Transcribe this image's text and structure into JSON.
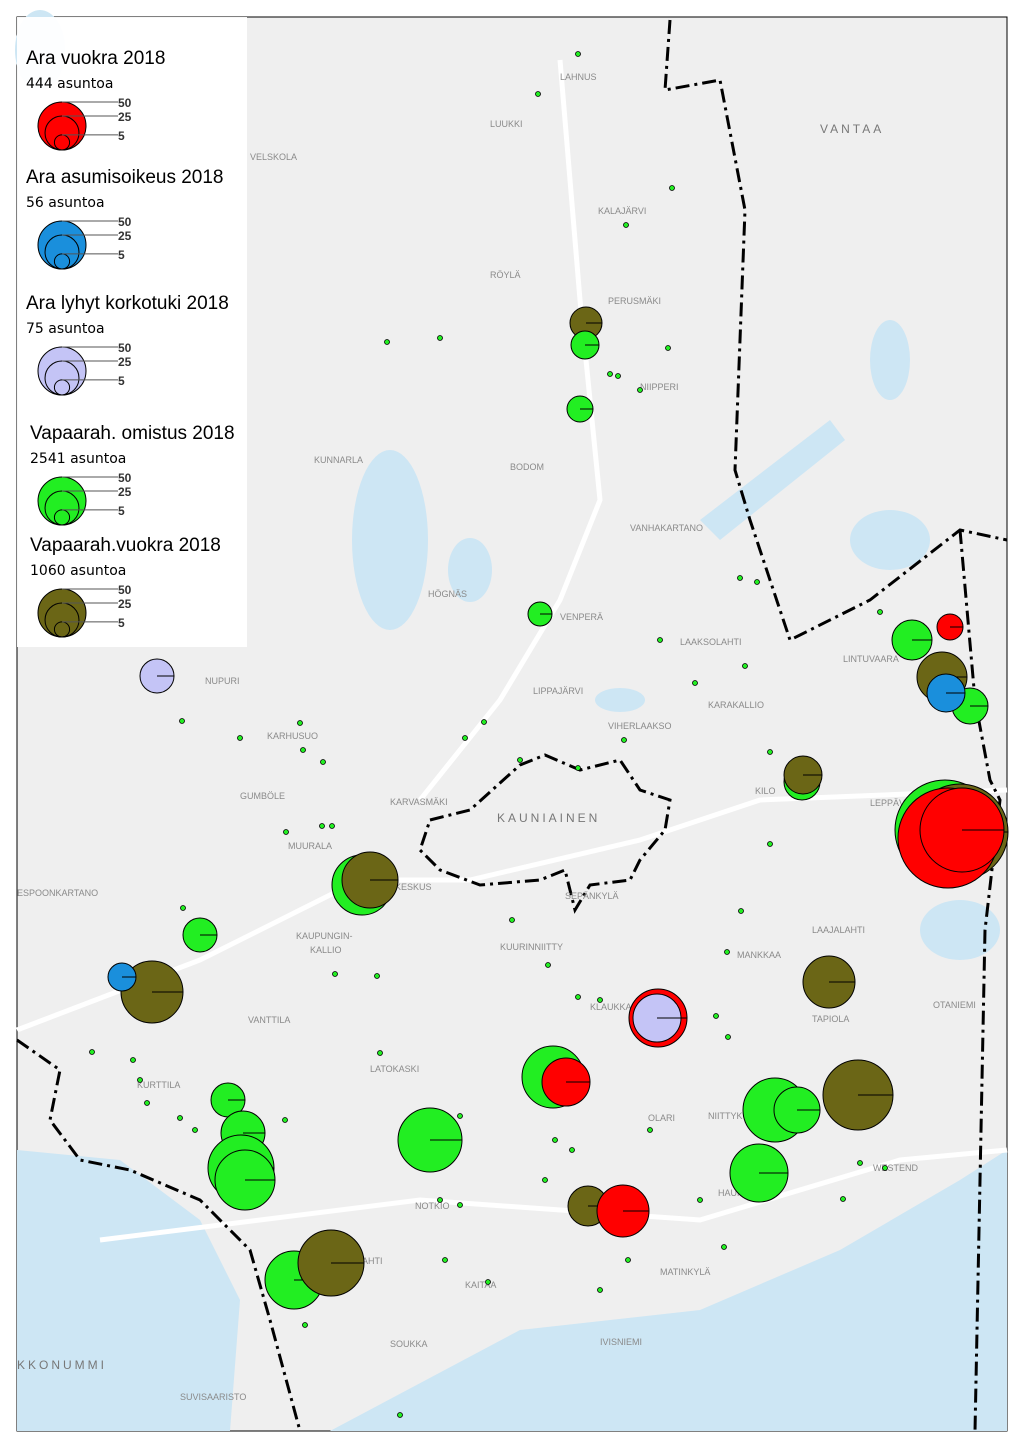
{
  "legend": [
    {
      "title": "Ara vuokra 2018",
      "count": "444 asuntoa",
      "color": "#ff0000"
    },
    {
      "title": "Ara asumisoikeus 2018",
      "count": "56 asuntoa",
      "color": "#1a8fdc"
    },
    {
      "title": "Ara lyhyt korkotuki 2018",
      "count": "75 asuntoa",
      "color": "#c4c4f6"
    },
    {
      "title": "Vapaarah. omistus 2018",
      "count": "2541 asuntoa",
      "color": "#22ee22"
    },
    {
      "title": "Vapaarah.vuokra 2018",
      "count": "1060 asuntoa",
      "color": "#6b6616"
    }
  ],
  "legend_sizes": [
    50,
    25,
    5
  ],
  "places": [
    "LAHNUS",
    "LUUKKI",
    "VELSKOLA",
    "KALAJÄRVI",
    "RÖYLÄ",
    "PERUSMÄKI",
    "NIIPPERI",
    "KUNNARLA",
    "BODOM",
    "VANHAKARTANO",
    "HÖGNÄS",
    "VENPERÄ",
    "LAAKSOLAHTI",
    "LINTUVAARA",
    "NUPURI",
    "LIPPAJÄRVI",
    "KARAKALLIO",
    "VIHERLAAKSO",
    "KARHUSUO",
    "KILO",
    "LEPPÄVAARA",
    "GUMBÖLE",
    "KARVASMÄKI",
    "MUURALA",
    "KESKUS",
    "ESPOONKARTANO",
    "SEPÄNKYLÄ",
    "KAUPUNGIN-",
    "KALLIO",
    "KUURINNIITTY",
    "LAAJALAHTI",
    "MANKKAA",
    "VANTTILA",
    "KLAUKKALA",
    "TAPIOLA",
    "OTANIEMI",
    "LATOKASKI",
    "KURTTILA",
    "OLARI",
    "NIITTYKUMPU",
    "WESTEND",
    "HAUKILAHTI",
    "NOTKIO",
    "MATINKYLÄ",
    "IVISNIEMI",
    "SUVISAARISTO",
    "KAITAA",
    "SOUKKA",
    "KIVENLAHTI"
  ],
  "regions": [
    "VANTAA",
    "KAUNIAINEN",
    "KKONUMMI"
  ]
}
